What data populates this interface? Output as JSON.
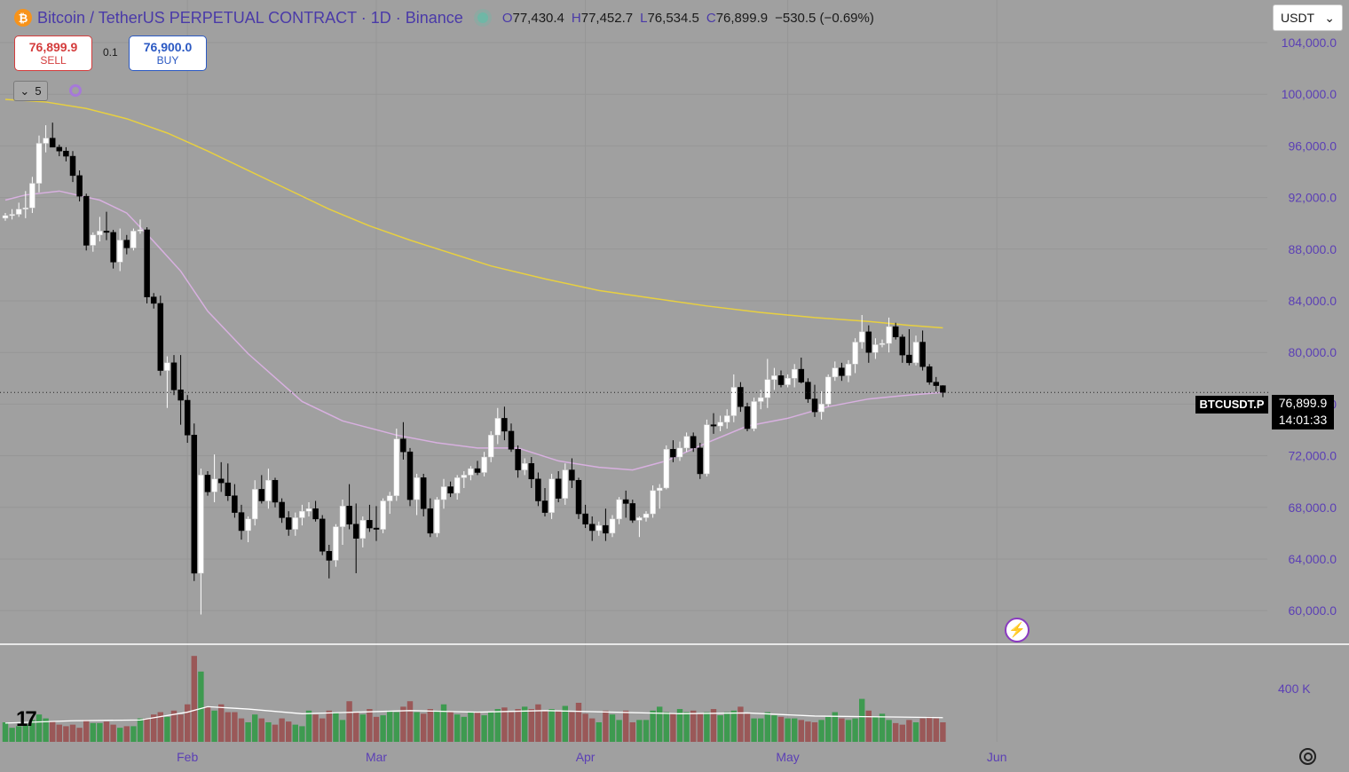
{
  "header": {
    "coin_glyph": "₿",
    "title": "Bitcoin / TetherUS PERPETUAL CONTRACT · 1D · Binance",
    "ohlc": {
      "o_label": "O",
      "o": "77,430.4",
      "h_label": "H",
      "h": "77,452.7",
      "l_label": "L",
      "l": "76,534.5",
      "c_label": "C",
      "c": "76,899.9",
      "change": "−530.5 (−0.69%)"
    }
  },
  "trade": {
    "sell_price": "76,899.9",
    "sell_label": "SELL",
    "spread": "0.1",
    "buy_price": "76,900.0",
    "buy_label": "BUY"
  },
  "indicators_toggle": "5",
  "currency": {
    "selected": "USDT",
    "arrow": "⌄"
  },
  "price_tag": {
    "symbol": "BTCUSDT.P",
    "price": "76,899.9",
    "countdown": "14:01:33"
  },
  "volume_axis_label": "400 K",
  "logo_text": "17",
  "flash_glyph": "⚡",
  "colors": {
    "up": "#ffffff",
    "down": "#000000",
    "vol_up": "#3e9a50",
    "vol_down": "#9a5858",
    "ma_fast": "#d8b0e0",
    "ma_slow": "#e8d040",
    "axis_text": "#5b3fb5"
  },
  "chart_data": {
    "type": "candlestick",
    "title": "Bitcoin / TetherUS PERPETUAL CONTRACT · 1D · Binance",
    "y_ticks": [
      "60,000.0",
      "64,000.0",
      "68,000.0",
      "72,000.0",
      "76,000.0",
      "80,000.0",
      "84,000.0",
      "88,000.0",
      "92,000.0",
      "96,000.0",
      "100,000.0",
      "104,000.0"
    ],
    "y_tick_values": [
      60000,
      64000,
      68000,
      72000,
      76000,
      80000,
      84000,
      88000,
      92000,
      96000,
      100000,
      104000
    ],
    "ylim": [
      57400,
      107300
    ],
    "x_labels": [
      "Feb",
      "Mar",
      "Apr",
      "May",
      "Jun"
    ],
    "x_label_index": [
      27,
      55,
      86,
      116,
      147
    ],
    "candles": [
      [
        90400,
        90800,
        90200,
        90600
      ],
      [
        90600,
        91100,
        90300,
        90700
      ],
      [
        90700,
        91600,
        90500,
        91100
      ],
      [
        91100,
        92500,
        90400,
        91200
      ],
      [
        91200,
        93600,
        90800,
        93100
      ],
      [
        93100,
        96800,
        92400,
        96200
      ],
      [
        96200,
        97600,
        95500,
        96600
      ],
      [
        96600,
        97800,
        95900,
        95900
      ],
      [
        95900,
        96100,
        95200,
        95600
      ],
      [
        95600,
        95900,
        94800,
        95200
      ],
      [
        95200,
        95600,
        93200,
        93700
      ],
      [
        93700,
        94100,
        91700,
        92100
      ],
      [
        92100,
        92300,
        87900,
        88300
      ],
      [
        88300,
        89300,
        87800,
        89100
      ],
      [
        89100,
        90500,
        88600,
        89400
      ],
      [
        89400,
        90900,
        88700,
        89300
      ],
      [
        89300,
        89500,
        86500,
        87000
      ],
      [
        87000,
        89600,
        86300,
        88700
      ],
      [
        88700,
        89100,
        87600,
        88100
      ],
      [
        88100,
        89600,
        87900,
        89400
      ],
      [
        89400,
        90300,
        89200,
        89500
      ],
      [
        89500,
        89700,
        83800,
        84300
      ],
      [
        84300,
        84600,
        83400,
        83800
      ],
      [
        83800,
        84400,
        78200,
        78600
      ],
      [
        78600,
        79700,
        75700,
        79200
      ],
      [
        79200,
        79800,
        76700,
        77100
      ],
      [
        77100,
        79800,
        74400,
        76300
      ],
      [
        76300,
        76700,
        73000,
        73600
      ],
      [
        73600,
        74500,
        62300,
        62900
      ],
      [
        62900,
        71000,
        59700,
        70500
      ],
      [
        70500,
        70800,
        68900,
        69200
      ],
      [
        69200,
        72100,
        68400,
        70200
      ],
      [
        70200,
        71500,
        69200,
        69900
      ],
      [
        69900,
        71400,
        68500,
        68900
      ],
      [
        68900,
        69800,
        67200,
        67600
      ],
      [
        67600,
        68200,
        65500,
        66200
      ],
      [
        66200,
        67300,
        65300,
        67100
      ],
      [
        67100,
        70100,
        66600,
        69400
      ],
      [
        69400,
        70500,
        68300,
        68500
      ],
      [
        68500,
        71000,
        67900,
        70100
      ],
      [
        70100,
        70300,
        68000,
        68400
      ],
      [
        68400,
        68700,
        66800,
        67200
      ],
      [
        67200,
        67700,
        65800,
        66300
      ],
      [
        66300,
        67600,
        65800,
        67200
      ],
      [
        67200,
        68200,
        66600,
        67700
      ],
      [
        67700,
        68400,
        67300,
        67900
      ],
      [
        67900,
        68500,
        66900,
        67100
      ],
      [
        67100,
        67400,
        64300,
        64600
      ],
      [
        64600,
        65100,
        62500,
        63900
      ],
      [
        63900,
        66700,
        63400,
        66500
      ],
      [
        66500,
        68600,
        65100,
        68100
      ],
      [
        68100,
        69800,
        66300,
        66700
      ],
      [
        66700,
        68300,
        62900,
        65600
      ],
      [
        65600,
        67300,
        64900,
        67000
      ],
      [
        67000,
        68200,
        66100,
        66400
      ],
      [
        66400,
        68100,
        65400,
        66300
      ],
      [
        66300,
        68700,
        66000,
        68500
      ],
      [
        68500,
        69200,
        67500,
        68900
      ],
      [
        68900,
        74100,
        68500,
        73300
      ],
      [
        73300,
        74600,
        71700,
        72300
      ],
      [
        72300,
        72600,
        68100,
        68600
      ],
      [
        68600,
        70600,
        67400,
        70300
      ],
      [
        70300,
        70600,
        67300,
        67900
      ],
      [
        67900,
        68700,
        65700,
        66000
      ],
      [
        66000,
        68800,
        65700,
        68600
      ],
      [
        68600,
        70200,
        67900,
        69600
      ],
      [
        69600,
        70000,
        68800,
        69100
      ],
      [
        69100,
        70500,
        68600,
        70300
      ],
      [
        70300,
        70800,
        69500,
        70500
      ],
      [
        70500,
        71200,
        70100,
        71000
      ],
      [
        71000,
        71600,
        70500,
        70700
      ],
      [
        70700,
        72300,
        70400,
        71900
      ],
      [
        71900,
        73900,
        71500,
        73600
      ],
      [
        73600,
        75700,
        72900,
        74900
      ],
      [
        74900,
        75800,
        73200,
        73900
      ],
      [
        73900,
        74500,
        72300,
        72500
      ],
      [
        72500,
        72800,
        70300,
        70900
      ],
      [
        70900,
        71800,
        70500,
        71400
      ],
      [
        71400,
        71900,
        69500,
        70200
      ],
      [
        70200,
        70700,
        68100,
        68500
      ],
      [
        68500,
        69500,
        67300,
        67600
      ],
      [
        67600,
        70600,
        67100,
        70200
      ],
      [
        70200,
        70800,
        68400,
        68700
      ],
      [
        68700,
        71400,
        68200,
        70900
      ],
      [
        70900,
        71800,
        69500,
        70100
      ],
      [
        70100,
        70300,
        67100,
        67500
      ],
      [
        67500,
        68200,
        66400,
        66700
      ],
      [
        66700,
        67300,
        65400,
        66200
      ],
      [
        66200,
        66900,
        65800,
        66600
      ],
      [
        66600,
        67900,
        65400,
        66000
      ],
      [
        66000,
        67400,
        65700,
        67100
      ],
      [
        67100,
        68800,
        66700,
        68600
      ],
      [
        68600,
        69300,
        67200,
        68300
      ],
      [
        68300,
        68600,
        66800,
        67000
      ],
      [
        67000,
        67300,
        65700,
        67200
      ],
      [
        67200,
        67700,
        66900,
        67500
      ],
      [
        67500,
        69700,
        67200,
        69300
      ],
      [
        69300,
        69800,
        67900,
        69500
      ],
      [
        69500,
        72800,
        69400,
        72500
      ],
      [
        72500,
        73200,
        71500,
        71900
      ],
      [
        71900,
        73100,
        71600,
        72600
      ],
      [
        72600,
        73800,
        72300,
        73500
      ],
      [
        73500,
        73800,
        72300,
        72600
      ],
      [
        72600,
        73000,
        70200,
        70600
      ],
      [
        70600,
        74800,
        70400,
        74400
      ],
      [
        74400,
        75300,
        73700,
        74300
      ],
      [
        74300,
        75100,
        73900,
        74600
      ],
      [
        74600,
        75600,
        74100,
        75100
      ],
      [
        75100,
        78300,
        74600,
        77300
      ],
      [
        77300,
        77700,
        75400,
        75800
      ],
      [
        75800,
        76100,
        73900,
        74100
      ],
      [
        74100,
        76500,
        73900,
        76200
      ],
      [
        76200,
        77100,
        75600,
        76500
      ],
      [
        76500,
        79500,
        75700,
        77900
      ],
      [
        77900,
        78800,
        77100,
        78200
      ],
      [
        78200,
        78600,
        77300,
        77500
      ],
      [
        77500,
        78300,
        77300,
        78000
      ],
      [
        78000,
        79100,
        77300,
        78700
      ],
      [
        78700,
        79600,
        77600,
        77700
      ],
      [
        77700,
        78000,
        76100,
        76400
      ],
      [
        76400,
        77500,
        75000,
        75400
      ],
      [
        75400,
        77000,
        74800,
        76000
      ],
      [
        76000,
        78300,
        75800,
        78100
      ],
      [
        78100,
        79300,
        77800,
        78800
      ],
      [
        78800,
        79200,
        77800,
        78200
      ],
      [
        78200,
        79400,
        77700,
        79100
      ],
      [
        79100,
        81100,
        78400,
        80800
      ],
      [
        80800,
        82900,
        80300,
        81600
      ],
      [
        81600,
        82100,
        79200,
        80000
      ],
      [
        80000,
        81100,
        79500,
        80600
      ],
      [
        80600,
        81000,
        80400,
        80700
      ],
      [
        80700,
        82700,
        80000,
        82000
      ],
      [
        82000,
        82300,
        81000,
        81200
      ],
      [
        81200,
        81400,
        79200,
        79800
      ],
      [
        79800,
        81800,
        79000,
        79200
      ],
      [
        79200,
        81300,
        79000,
        80800
      ],
      [
        80800,
        81700,
        78600,
        78900
      ],
      [
        78900,
        79100,
        77500,
        77700
      ],
      [
        77700,
        78100,
        77000,
        77430
      ],
      [
        77430,
        77452.7,
        76534.5,
        76899.9
      ]
    ],
    "volumes": [
      25,
      18,
      20,
      22,
      28,
      35,
      30,
      26,
      22,
      20,
      22,
      18,
      28,
      24,
      24,
      26,
      22,
      18,
      20,
      20,
      30,
      30,
      35,
      38,
      32,
      40,
      35,
      48,
      110,
      90,
      45,
      40,
      48,
      38,
      38,
      30,
      25,
      35,
      30,
      25,
      22,
      30,
      26,
      22,
      20,
      40,
      35,
      30,
      40,
      38,
      28,
      52,
      38,
      35,
      42,
      32,
      34,
      40,
      38,
      45,
      52,
      38,
      36,
      42,
      40,
      48,
      38,
      35,
      32,
      38,
      38,
      34,
      38,
      42,
      44,
      38,
      42,
      45,
      42,
      48,
      40,
      42,
      40,
      46,
      38,
      50,
      36,
      30,
      25,
      40,
      35,
      28,
      40,
      25,
      28,
      28,
      40,
      45,
      38,
      36,
      42,
      38,
      40,
      36,
      38,
      42,
      34,
      38,
      40,
      45,
      36,
      30,
      30,
      38,
      34,
      32,
      30,
      30,
      28,
      26,
      25,
      28,
      32,
      38,
      30,
      28,
      30,
      55,
      40,
      32,
      36,
      28,
      24,
      22,
      28,
      25,
      30,
      32,
      30,
      25
    ],
    "ma_fast": [
      [
        0,
        91800
      ],
      [
        3,
        92200
      ],
      [
        8,
        92500
      ],
      [
        14,
        91800
      ],
      [
        18,
        90800
      ],
      [
        22,
        88600
      ],
      [
        26,
        86300
      ],
      [
        30,
        83200
      ],
      [
        36,
        79900
      ],
      [
        44,
        76200
      ],
      [
        50,
        74700
      ],
      [
        58,
        73600
      ],
      [
        64,
        73000
      ],
      [
        70,
        72600
      ],
      [
        76,
        72600
      ],
      [
        82,
        71600
      ],
      [
        88,
        71100
      ],
      [
        93,
        70900
      ],
      [
        98,
        71600
      ],
      [
        104,
        73000
      ],
      [
        110,
        74300
      ],
      [
        116,
        74900
      ],
      [
        122,
        75800
      ],
      [
        128,
        76400
      ],
      [
        134,
        76700
      ],
      [
        139,
        76900
      ]
    ],
    "ma_slow": [
      [
        0,
        99600
      ],
      [
        6,
        99400
      ],
      [
        12,
        98900
      ],
      [
        18,
        98100
      ],
      [
        24,
        97000
      ],
      [
        30,
        95600
      ],
      [
        36,
        94100
      ],
      [
        42,
        92600
      ],
      [
        48,
        91100
      ],
      [
        54,
        89800
      ],
      [
        60,
        88700
      ],
      [
        66,
        87700
      ],
      [
        72,
        86700
      ],
      [
        80,
        85700
      ],
      [
        88,
        84800
      ],
      [
        96,
        84200
      ],
      [
        104,
        83600
      ],
      [
        112,
        83100
      ],
      [
        120,
        82700
      ],
      [
        128,
        82400
      ],
      [
        134,
        82100
      ],
      [
        139,
        81900
      ]
    ],
    "volume_ma": [
      [
        0,
        24
      ],
      [
        10,
        27
      ],
      [
        20,
        28
      ],
      [
        27,
        38
      ],
      [
        30,
        45
      ],
      [
        36,
        42
      ],
      [
        44,
        36
      ],
      [
        52,
        38
      ],
      [
        60,
        40
      ],
      [
        70,
        38
      ],
      [
        80,
        40
      ],
      [
        90,
        38
      ],
      [
        100,
        36
      ],
      [
        110,
        37
      ],
      [
        120,
        33
      ],
      [
        130,
        32
      ],
      [
        139,
        31
      ]
    ],
    "volume_ylim": [
      0,
      125
    ]
  }
}
